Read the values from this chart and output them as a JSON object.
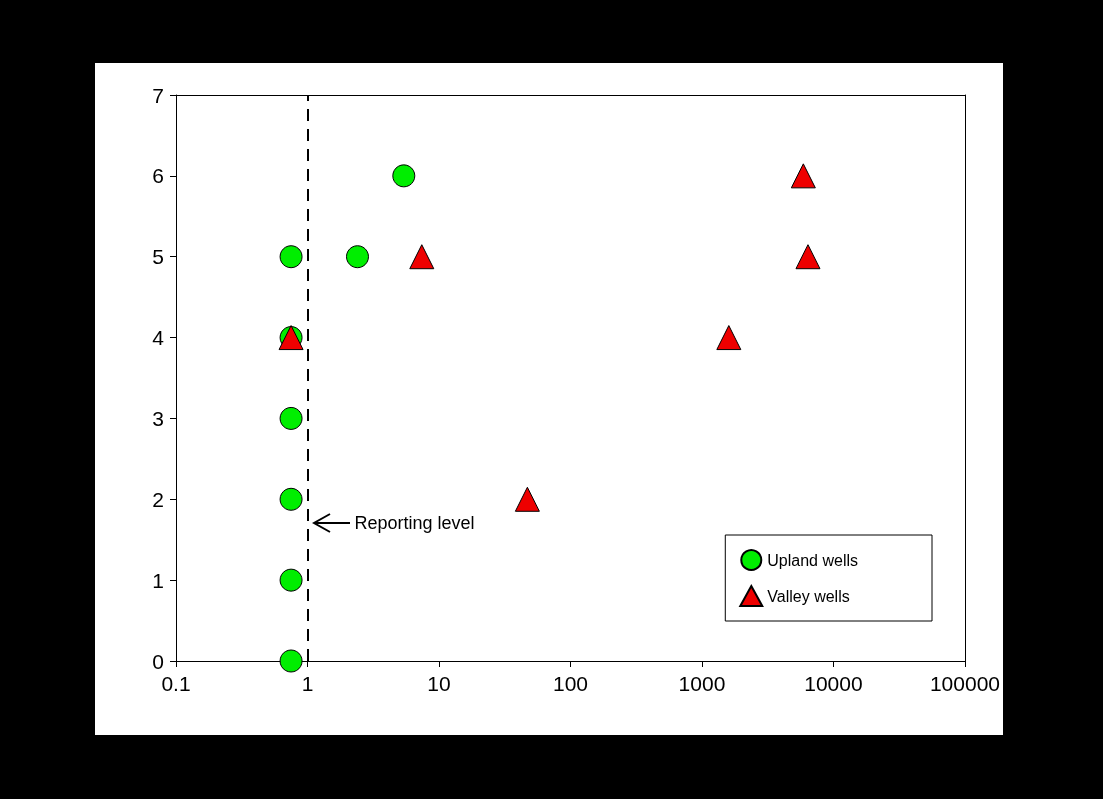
{
  "chart_data": {
    "type": "scatter",
    "series": [
      {
        "name": "Upland wells",
        "color": "#00ee00",
        "marker": "circle",
        "x": [
          0.75,
          0.75,
          0.75,
          0.75,
          0.75,
          0.75,
          2.4,
          5.4
        ],
        "values": [
          0,
          1,
          2,
          3,
          4,
          5,
          5,
          6
        ]
      },
      {
        "name": "Valley wells",
        "color": "#ee0000",
        "marker": "triangle",
        "x": [
          0.75,
          7.4,
          47,
          1600,
          5900,
          6400
        ],
        "values": [
          4,
          5,
          2,
          4,
          6,
          5
        ]
      }
    ],
    "log": "x",
    "xlim": [
      0.1,
      100000
    ],
    "xticks": [
      0.1,
      1,
      10,
      100,
      1000,
      10000,
      100000
    ],
    "ylim": [
      0,
      7
    ],
    "yticks": [
      0,
      1,
      2,
      3,
      4,
      5,
      6,
      7
    ],
    "grid": false,
    "legend": "bottom right",
    "ref_lines": [
      {
        "axis": "x",
        "value": 1,
        "label": "Reporting level",
        "color": "#000000",
        "line_style": "dashed"
      }
    ]
  }
}
